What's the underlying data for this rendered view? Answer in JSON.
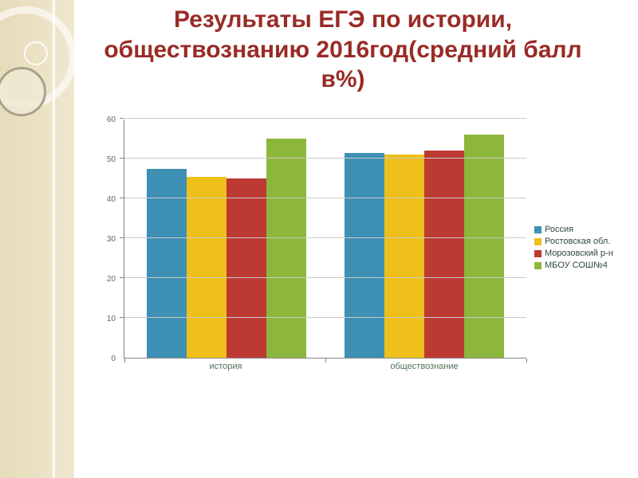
{
  "slide": {
    "title": "Результаты ЕГЭ по истории, обществознанию 2016год(средний балл в%)",
    "title_lines": [
      "Результаты ЕГЭ по истории,",
      "обществознанию 2016год(средний балл",
      "в%)"
    ]
  },
  "chart_data": {
    "type": "bar",
    "title": "Результаты ЕГЭ по истории, обществознанию 2016год(средний балл в%)",
    "categories": [
      "история",
      "обществознание"
    ],
    "series": [
      {
        "name": "Россия",
        "color": "#3e90b4",
        "values": [
          47.5,
          51.5
        ]
      },
      {
        "name": "Ростовская обл.",
        "color": "#efc019",
        "values": [
          45.5,
          51
        ]
      },
      {
        "name": "Морозовский р-н",
        "color": "#bd3a32",
        "values": [
          45,
          52
        ]
      },
      {
        "name": "МБОУ СОШ№4",
        "color": "#8db73c",
        "values": [
          55,
          56
        ]
      }
    ],
    "xlabel": "",
    "ylabel": "",
    "ylim": [
      0,
      60
    ],
    "ytick_step": 10,
    "grid": true,
    "legend_position": "right"
  },
  "colors": {
    "title_text": "#992b26",
    "sidebar_beige": "#e9dfc2",
    "axis_line": "#848484",
    "gridline": "#c8c8c8",
    "tick_label": "#4f7257"
  }
}
